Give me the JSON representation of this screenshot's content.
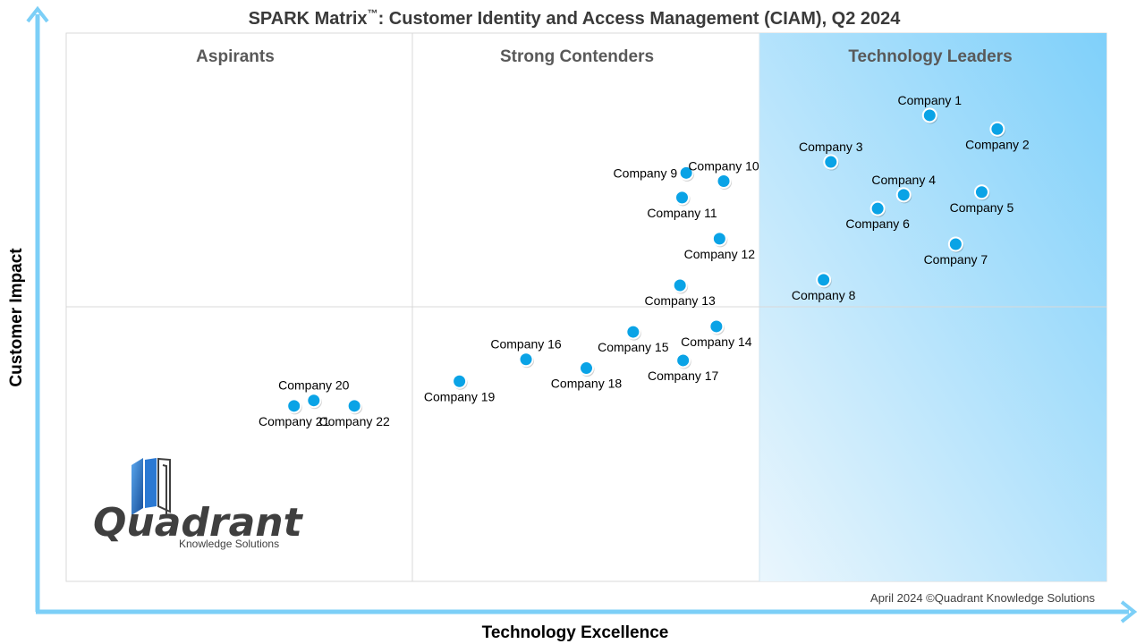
{
  "chart_data": {
    "type": "scatter",
    "title_main": "SPARK Matrix",
    "title_tm": "™",
    "title_rest": ": Customer Identity and Access Management (CIAM), Q2 2024",
    "xlabel": "Technology Excellence",
    "ylabel": "Customer Impact",
    "xlim": [
      0,
      100
    ],
    "ylim": [
      0,
      100
    ],
    "quadrants": {
      "aspirants": "Aspirants",
      "strong_contenders": "Strong Contenders",
      "technology_leaders": "Technology Leaders"
    },
    "points": [
      {
        "label": "Company 1",
        "x": 83.0,
        "y": 85.0,
        "label_pos": "above"
      },
      {
        "label": "Company 2",
        "x": 89.5,
        "y": 82.5,
        "label_pos": "below"
      },
      {
        "label": "Company 3",
        "x": 73.5,
        "y": 76.5,
        "label_pos": "above"
      },
      {
        "label": "Company 4",
        "x": 80.5,
        "y": 70.5,
        "label_pos": "above"
      },
      {
        "label": "Company 5",
        "x": 88.0,
        "y": 71.0,
        "label_pos": "below"
      },
      {
        "label": "Company 6",
        "x": 78.0,
        "y": 68.0,
        "label_pos": "below"
      },
      {
        "label": "Company 7",
        "x": 85.5,
        "y": 61.5,
        "label_pos": "below"
      },
      {
        "label": "Company 8",
        "x": 72.8,
        "y": 55.0,
        "label_pos": "below"
      },
      {
        "label": "Company 9",
        "x": 59.6,
        "y": 74.5,
        "label_pos": "left"
      },
      {
        "label": "Company 10",
        "x": 63.2,
        "y": 73.0,
        "label_pos": "above"
      },
      {
        "label": "Company 11",
        "x": 59.2,
        "y": 70.0,
        "label_pos": "below"
      },
      {
        "label": "Company 12",
        "x": 62.8,
        "y": 62.5,
        "label_pos": "below"
      },
      {
        "label": "Company 13",
        "x": 59.0,
        "y": 54.0,
        "label_pos": "below"
      },
      {
        "label": "Company 14",
        "x": 62.5,
        "y": 46.5,
        "label_pos": "below"
      },
      {
        "label": "Company 15",
        "x": 54.5,
        "y": 45.5,
        "label_pos": "below"
      },
      {
        "label": "Company 16",
        "x": 44.2,
        "y": 40.5,
        "label_pos": "above"
      },
      {
        "label": "Company 17",
        "x": 59.3,
        "y": 40.3,
        "label_pos": "below"
      },
      {
        "label": "Company 18",
        "x": 50.0,
        "y": 38.9,
        "label_pos": "below"
      },
      {
        "label": "Company 19",
        "x": 37.8,
        "y": 36.5,
        "label_pos": "below"
      },
      {
        "label": "Company 20",
        "x": 23.8,
        "y": 33.0,
        "label_pos": "above"
      },
      {
        "label": "Company 21",
        "x": 21.9,
        "y": 32.0,
        "label_pos": "below"
      },
      {
        "label": "Company 22",
        "x": 27.7,
        "y": 32.0,
        "label_pos": "below"
      }
    ],
    "footer": "April 2024 ©Quadrant Knowledge Solutions",
    "logo_main": "Quadrant",
    "logo_sub": "Knowledge Solutions",
    "colors": {
      "point_fill": "#0aa3e6",
      "point_stroke": "#ffffff",
      "axis_arrow": "#7ccff7",
      "leader_gradient_start": "#7fd0fa",
      "leader_gradient_end": "#eaf6fd",
      "grid": "#d9d9d9",
      "logo_blue": "#1f6fc5"
    }
  }
}
